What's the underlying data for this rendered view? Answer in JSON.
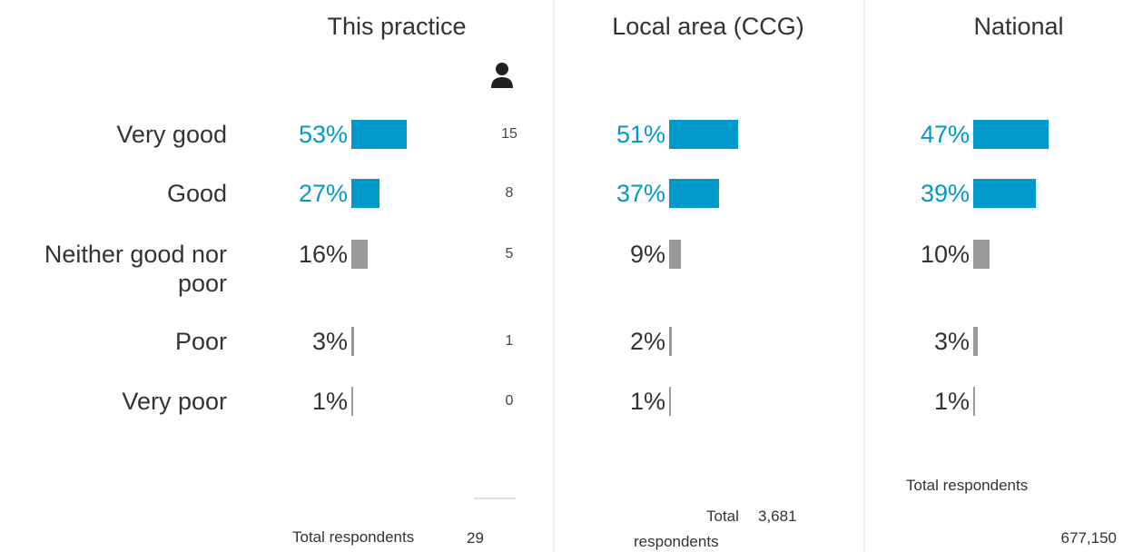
{
  "row_labels": [
    "Very good",
    "Good",
    "Neither good nor poor",
    "Poor",
    "Very poor"
  ],
  "columns": [
    {
      "title": "This practice",
      "values": [
        53,
        27,
        16,
        3,
        1
      ],
      "value_labels": [
        "53%",
        "27%",
        "16%",
        "3%",
        "1%"
      ],
      "counts": [
        15,
        8,
        5,
        1,
        0
      ],
      "total_label": "Total respondents",
      "total": 29
    },
    {
      "title": "Local area (CCG)",
      "values": [
        51,
        37,
        9,
        2,
        1
      ],
      "value_labels": [
        "51%",
        "37%",
        "9%",
        "2%",
        "1%"
      ],
      "total_label": "Total respondents",
      "total": "3,681"
    },
    {
      "title": "National",
      "values": [
        47,
        39,
        10,
        3,
        1
      ],
      "value_labels": [
        "47%",
        "39%",
        "10%",
        "3%",
        "1%"
      ],
      "total_label": "Total respondents",
      "total": "677,150"
    }
  ]
}
